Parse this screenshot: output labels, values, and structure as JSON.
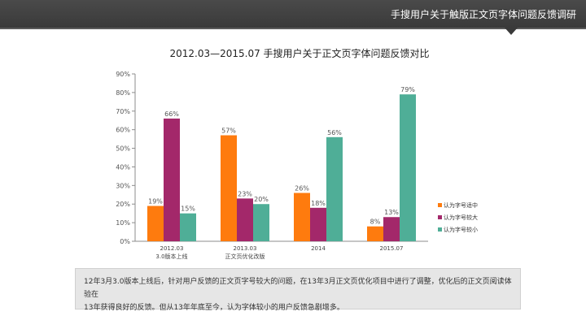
{
  "header": {
    "title": "手搜用户关于触版正文页字体问题反馈调研"
  },
  "colors": {
    "header_bg": "#3f3f3f",
    "series": [
      "#fe7b0e",
      "#a3286a",
      "#4fae97"
    ]
  },
  "chart_data": {
    "type": "bar",
    "title": "2012.03—2015.07 手搜用户关于正文页字体问题反馈对比",
    "categories": [
      [
        "2012.03",
        "3.0版本上线"
      ],
      [
        "2013.03",
        "正文页优化改版"
      ],
      [
        "2014"
      ],
      [
        "2015.07"
      ]
    ],
    "series": [
      {
        "name": "认为字号适中",
        "values": [
          19,
          57,
          26,
          8
        ],
        "color": "#fe7b0e"
      },
      {
        "name": "认为字号较大",
        "values": [
          66,
          23,
          18,
          13
        ],
        "color": "#a3286a"
      },
      {
        "name": "认为字号较小",
        "values": [
          15,
          20,
          56,
          79
        ],
        "color": "#4fae97"
      }
    ],
    "y_ticks": [
      "0%",
      "10%",
      "20%",
      "30%",
      "40%",
      "50%",
      "60%",
      "70%",
      "80%",
      "90%"
    ],
    "ylim": [
      0,
      90
    ],
    "value_suffix": "%",
    "grid": false,
    "legend_position": "right"
  },
  "description": {
    "line1": "12年3月3.0版本上线后，针对用户反馈的正文页字号较大的问题，在13年3月正文页优化项目中进行了调整，优化后的正文页阅读体验在",
    "line2": "13年获得良好的反馈。但从13年年底至今，认为字体较小的用户反馈急剧增多。"
  }
}
